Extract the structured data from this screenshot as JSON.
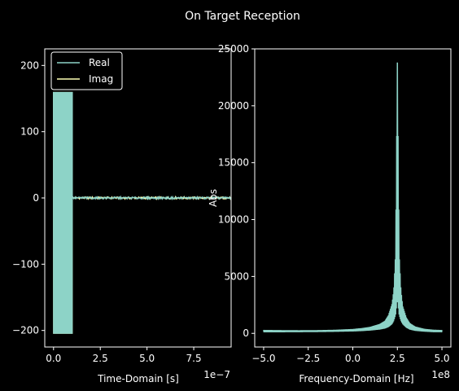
{
  "figure": {
    "title": "On Target Reception",
    "background": "#000000",
    "foreground": "#ffffff"
  },
  "chart_data": [
    {
      "type": "line",
      "xlabel": "Time-Domain [s]",
      "ylabel": "",
      "x_offset_label": "1e−7",
      "xlim": [
        -0.47,
        9.5
      ],
      "ylim": [
        -225,
        225
      ],
      "xticks": [
        0.0,
        2.5,
        5.0,
        7.5
      ],
      "xtick_labels": [
        "0.0",
        "2.5",
        "5.0",
        "7.5"
      ],
      "yticks": [
        -200,
        -100,
        0,
        100,
        200
      ],
      "ytick_labels": [
        "−200",
        "−100",
        "0",
        "100",
        "200"
      ],
      "grid": false,
      "legend": {
        "placement": "top-left",
        "entries": [
          "Real",
          "Imag"
        ]
      },
      "series": [
        {
          "name": "Real",
          "color": "#8dd3c7",
          "segments": [
            {
              "x": [
                0.0,
                1.0
              ],
              "y_range": [
                -205,
                160
              ]
            },
            {
              "x": [
                1.0,
                9.5
              ],
              "y_range": [
                -1.5,
                1.5
              ]
            }
          ]
        },
        {
          "name": "Imag",
          "color": "#feffb3",
          "segments": [
            {
              "x": [
                0.0,
                1.0
              ],
              "y_range": [
                -205,
                160
              ]
            },
            {
              "x": [
                1.0,
                9.5
              ],
              "y_range": [
                -1.5,
                1.5
              ]
            }
          ]
        }
      ]
    },
    {
      "type": "line",
      "xlabel": "Frequency-Domain [Hz]",
      "ylabel": "Abs",
      "x_offset_label": "1e8",
      "xlim": [
        -5.5,
        5.5
      ],
      "ylim": [
        -1200,
        25000
      ],
      "xticks": [
        -5.0,
        -2.5,
        0.0,
        2.5,
        5.0
      ],
      "xtick_labels": [
        "−5.0",
        "−2.5",
        "0.0",
        "2.5",
        "5.0"
      ],
      "yticks": [
        0,
        5000,
        10000,
        15000,
        20000,
        25000
      ],
      "ytick_labels": [
        "0",
        "5000",
        "10000",
        "15000",
        "20000",
        "25000"
      ],
      "grid": false,
      "series": [
        {
          "color": "#8dd3c7",
          "peak_x": 2.5,
          "peak_y": 23800,
          "envelope": {
            "x": [
              -5.0,
              -4.0,
              -3.0,
              -2.0,
              -1.0,
              0.0,
              0.5,
              1.0,
              1.5,
              1.8,
              2.0,
              2.2,
              2.3,
              2.4,
              2.5,
              2.6,
              2.7,
              2.8,
              3.0,
              3.2,
              3.5,
              4.0,
              4.5,
              5.0
            ],
            "upper": [
              300,
              280,
              270,
              280,
              310,
              380,
              460,
              580,
              820,
              1100,
              1600,
              2600,
              3800,
              7000,
              23800,
              7000,
              3800,
              2400,
              1400,
              900,
              600,
              400,
              320,
              290
            ],
            "lower": [
              100,
              100,
              110,
              120,
              140,
              170,
              200,
              250,
              330,
              420,
              550,
              800,
              1100,
              1600,
              3000,
              1600,
              1100,
              800,
              500,
              330,
              220,
              150,
              110,
              100
            ]
          }
        }
      ]
    }
  ]
}
